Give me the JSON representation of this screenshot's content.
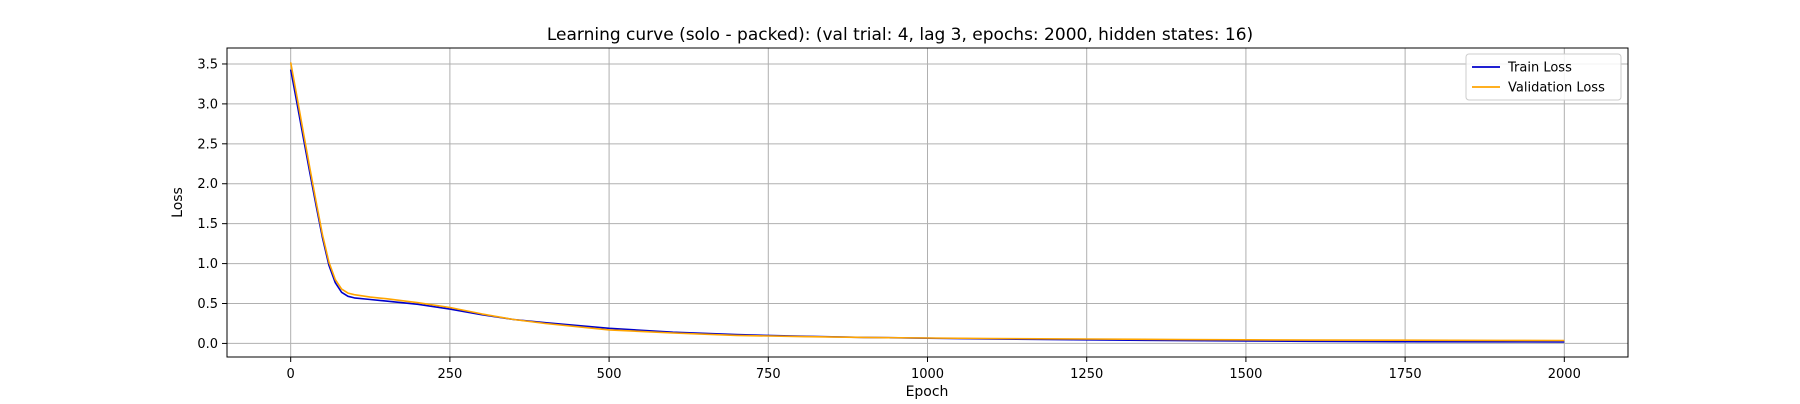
{
  "chart_data": {
    "type": "line",
    "title": "Learning curve (solo - packed): (val trial: 4, lag 3, epochs: 2000, hidden states: 16)",
    "xlabel": "Epoch",
    "ylabel": "Loss",
    "xlim": [
      -100,
      2100
    ],
    "ylim": [
      -0.17,
      3.7
    ],
    "xticks": [
      0,
      250,
      500,
      750,
      1000,
      1250,
      1500,
      1750,
      2000
    ],
    "yticks": [
      0.0,
      0.5,
      1.0,
      1.5,
      2.0,
      2.5,
      3.0,
      3.5
    ],
    "xtick_labels": [
      "0",
      "250",
      "500",
      "750",
      "1000",
      "1250",
      "1500",
      "1750",
      "2000"
    ],
    "ytick_labels": [
      "0.0",
      "0.5",
      "1.0",
      "1.5",
      "2.0",
      "2.5",
      "3.0",
      "3.5"
    ],
    "grid": true,
    "legend_position": "top-right",
    "series": [
      {
        "name": "Train Loss",
        "color": "#0000cc",
        "x": [
          0,
          10,
          20,
          30,
          40,
          50,
          60,
          70,
          80,
          90,
          100,
          125,
          150,
          200,
          250,
          300,
          350,
          400,
          500,
          600,
          700,
          800,
          900,
          1000,
          1100,
          1250,
          1400,
          1500,
          1600,
          1750,
          1900,
          2000
        ],
        "y": [
          3.43,
          3.0,
          2.57,
          2.14,
          1.72,
          1.32,
          0.98,
          0.76,
          0.64,
          0.59,
          0.57,
          0.55,
          0.53,
          0.49,
          0.43,
          0.36,
          0.3,
          0.26,
          0.19,
          0.14,
          0.11,
          0.09,
          0.075,
          0.065,
          0.055,
          0.045,
          0.035,
          0.03,
          0.027,
          0.022,
          0.02,
          0.018
        ]
      },
      {
        "name": "Validation Loss",
        "color": "#ffa500",
        "x": [
          0,
          10,
          20,
          30,
          40,
          50,
          60,
          70,
          80,
          90,
          100,
          125,
          150,
          200,
          250,
          300,
          350,
          400,
          500,
          600,
          700,
          800,
          900,
          1000,
          1100,
          1250,
          1400,
          1500,
          1600,
          1750,
          1900,
          2000
        ],
        "y": [
          3.52,
          3.08,
          2.64,
          2.2,
          1.77,
          1.36,
          1.02,
          0.8,
          0.68,
          0.63,
          0.61,
          0.58,
          0.56,
          0.51,
          0.45,
          0.37,
          0.3,
          0.25,
          0.17,
          0.13,
          0.1,
          0.085,
          0.075,
          0.068,
          0.062,
          0.055,
          0.048,
          0.045,
          0.042,
          0.04,
          0.038,
          0.037
        ]
      }
    ]
  }
}
